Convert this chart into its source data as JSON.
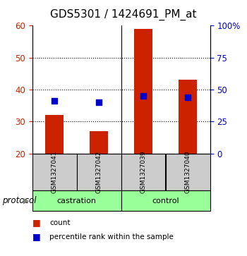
{
  "title": "GDS5301 / 1424691_PM_at",
  "samples": [
    "GSM1327041",
    "GSM1327042",
    "GSM1327039",
    "GSM1327040"
  ],
  "bar_values": [
    32,
    27,
    59,
    43
  ],
  "bar_bottom": 20,
  "percentile_values": [
    41,
    40,
    45,
    44
  ],
  "bar_color": "#CC2200",
  "percentile_color": "#0000CC",
  "ylim_left": [
    20,
    60
  ],
  "ylim_right": [
    0,
    100
  ],
  "yticks_left": [
    20,
    30,
    40,
    50,
    60
  ],
  "yticks_right": [
    0,
    25,
    50,
    75,
    100
  ],
  "ytick_labels_right": [
    "0",
    "25",
    "50",
    "75",
    "100%"
  ],
  "groups": [
    {
      "label": "castration",
      "indices": [
        0,
        1
      ]
    },
    {
      "label": "control",
      "indices": [
        2,
        3
      ]
    }
  ],
  "group_color": "#99FF99",
  "sample_box_color": "#CCCCCC",
  "protocol_label": "protocol",
  "legend_count_label": "count",
  "legend_percentile_label": "percentile rank within the sample",
  "bar_width": 0.4,
  "title_fontsize": 11,
  "axis_label_color_left": "#CC2200",
  "axis_label_color_right": "#0000CC"
}
